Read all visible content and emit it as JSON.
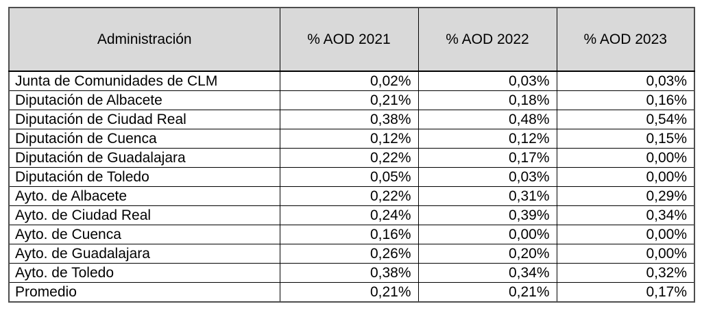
{
  "page": {
    "background": "#ffffff"
  },
  "table": {
    "headers": [
      "Administración",
      "% AOD 2021",
      "% AOD 2022",
      "% AOD 2023"
    ],
    "rows": [
      [
        "Junta de Comunidades de CLM",
        "0,02%",
        "0,03%",
        "0,03%"
      ],
      [
        "Diputación de Albacete",
        "0,21%",
        "0,18%",
        "0,16%"
      ],
      [
        "Diputación de Ciudad Real",
        "0,38%",
        "0,48%",
        "0,54%"
      ],
      [
        "Diputación de Cuenca",
        "0,12%",
        "0,12%",
        "0,15%"
      ],
      [
        "Diputación de Guadalajara",
        "0,22%",
        "0,17%",
        "0,00%"
      ],
      [
        "Diputación de Toledo",
        "0,05%",
        "0,03%",
        "0,00%"
      ],
      [
        "Ayto. de Albacete",
        "0,22%",
        "0,31%",
        "0,29%"
      ],
      [
        "Ayto. de Ciudad Real",
        "0,24%",
        "0,39%",
        "0,34%"
      ],
      [
        "Ayto. de Cuenca",
        "0,16%",
        "0,00%",
        "0,00%"
      ],
      [
        "Ayto. de Guadalajara",
        "0,26%",
        "0,20%",
        "0,00%"
      ],
      [
        "Ayto. de Toledo",
        "0,38%",
        "0,34%",
        "0,32%"
      ],
      [
        "Promedio",
        "0,21%",
        "0,21%",
        "0,17%"
      ]
    ],
    "colors": {
      "header_bg": "#d9d9d9",
      "border_inner": "#000000",
      "border_outer": "#4d4d4d",
      "text": "#000000"
    }
  }
}
